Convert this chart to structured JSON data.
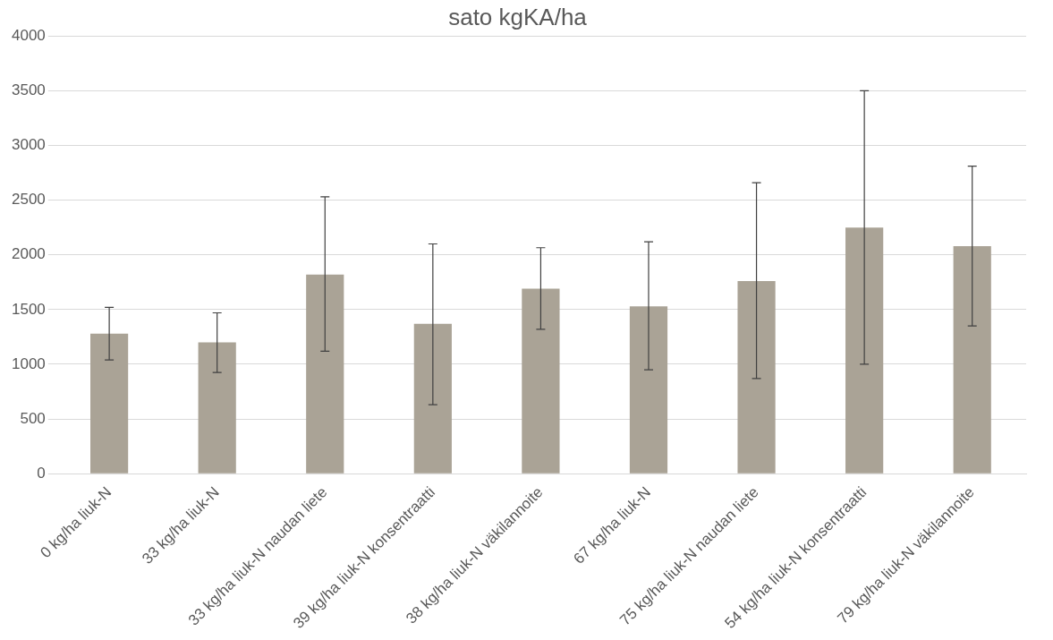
{
  "chart_data": {
    "type": "bar",
    "title": "sato kgKA/ha",
    "categories": [
      "0 kg/ha liuk-N",
      "33 kg/ha liuk-N",
      "33 kg/ha liuk-N naudan liete",
      "39 kg/ha liuk-N konsentraatti",
      "38 kg/ha liuk-N väkilannoite",
      "67 kg/ha liuk-N",
      "75 kg/ha liuk-N naudan liete",
      "54 kg/ha liuk-N konsentraatti",
      "79 kg/ha liuk-N väkilannoite"
    ],
    "values": [
      1280,
      1200,
      1820,
      1370,
      1690,
      1530,
      1760,
      2250,
      2080
    ],
    "errors": [
      [
        1040,
        1520
      ],
      [
        925,
        1470
      ],
      [
        1120,
        2530
      ],
      [
        630,
        2100
      ],
      [
        1320,
        2065
      ],
      [
        950,
        2120
      ],
      [
        870,
        2660
      ],
      [
        1000,
        3500
      ],
      [
        1350,
        2810
      ]
    ],
    "color": "#aaa396",
    "ylim": [
      0,
      4000
    ],
    "yticks": [
      0,
      500,
      1000,
      1500,
      2000,
      2500,
      3000,
      3500,
      4000
    ],
    "grid": "y",
    "legend": false
  }
}
